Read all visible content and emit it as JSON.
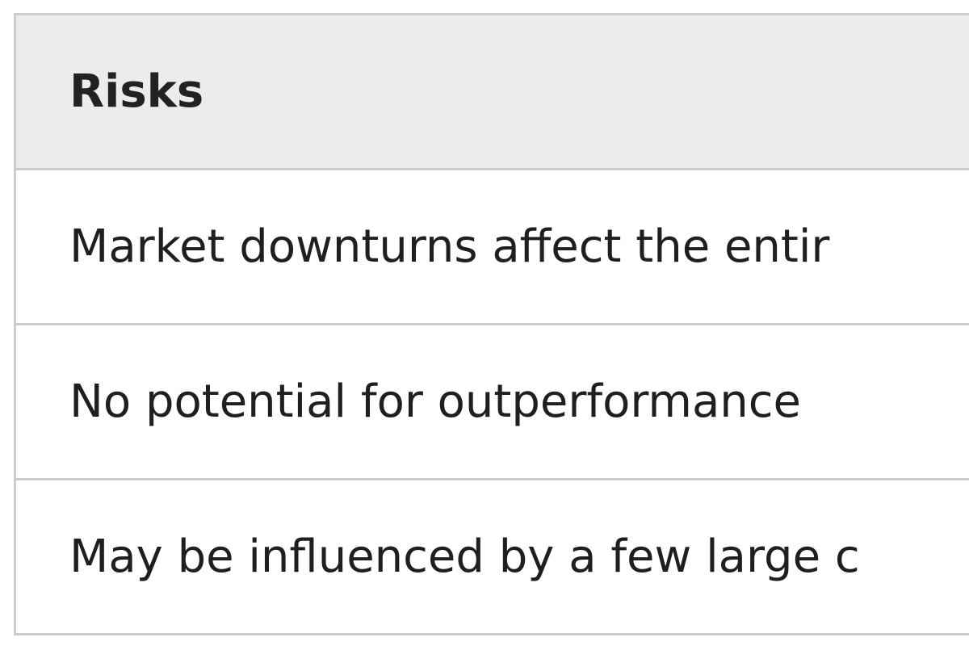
{
  "table": {
    "header": "Risks",
    "rows": [
      "Market downturns affect the entir",
      "No potential for outperformance",
      "May be influenced by a few large c"
    ]
  }
}
